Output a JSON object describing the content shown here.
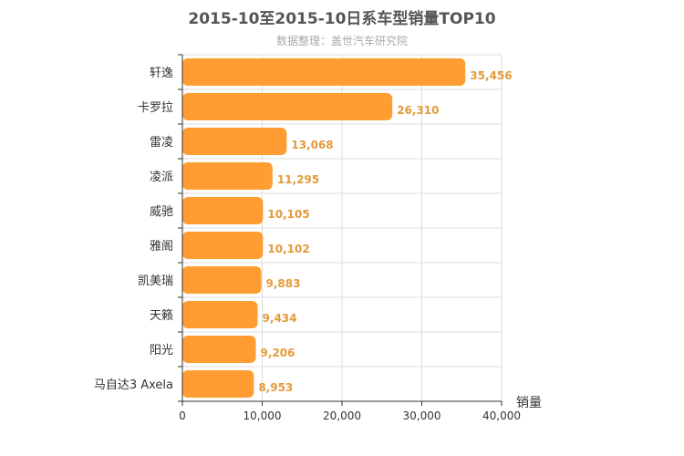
{
  "title": "2015-10至2015-10日系车型销量TOP10",
  "subtitle": "数据整理：盖世汽车研究院",
  "colors": {
    "bar": "#ff9d33",
    "label": "#e39a3a",
    "grid": "#dddddd",
    "axis": "#333333"
  },
  "chart_data": {
    "type": "bar",
    "orientation": "horizontal",
    "title": "2015-10至2015-10日系车型销量TOP10",
    "subtitle": "数据整理：盖世汽车研究院",
    "xlabel": "销量",
    "ylabel": "",
    "categories": [
      "轩逸",
      "卡罗拉",
      "雷凌",
      "凌派",
      "威驰",
      "雅阁",
      "凯美瑞",
      "天籁",
      "阳光",
      "马自达3 Axela"
    ],
    "values": [
      35456,
      26310,
      13068,
      11295,
      10105,
      10102,
      9883,
      9434,
      9206,
      8953
    ],
    "value_labels": [
      "35,456",
      "26,310",
      "13,068",
      "11,295",
      "10,105",
      "10,102",
      "9,883",
      "9,434",
      "9,206",
      "8,953"
    ],
    "xlim": [
      0,
      40000
    ],
    "xticks": [
      0,
      10000,
      20000,
      30000,
      40000
    ],
    "xtick_labels": [
      "0",
      "10,000",
      "20,000",
      "30,000",
      "40,000"
    ],
    "grid": true
  }
}
